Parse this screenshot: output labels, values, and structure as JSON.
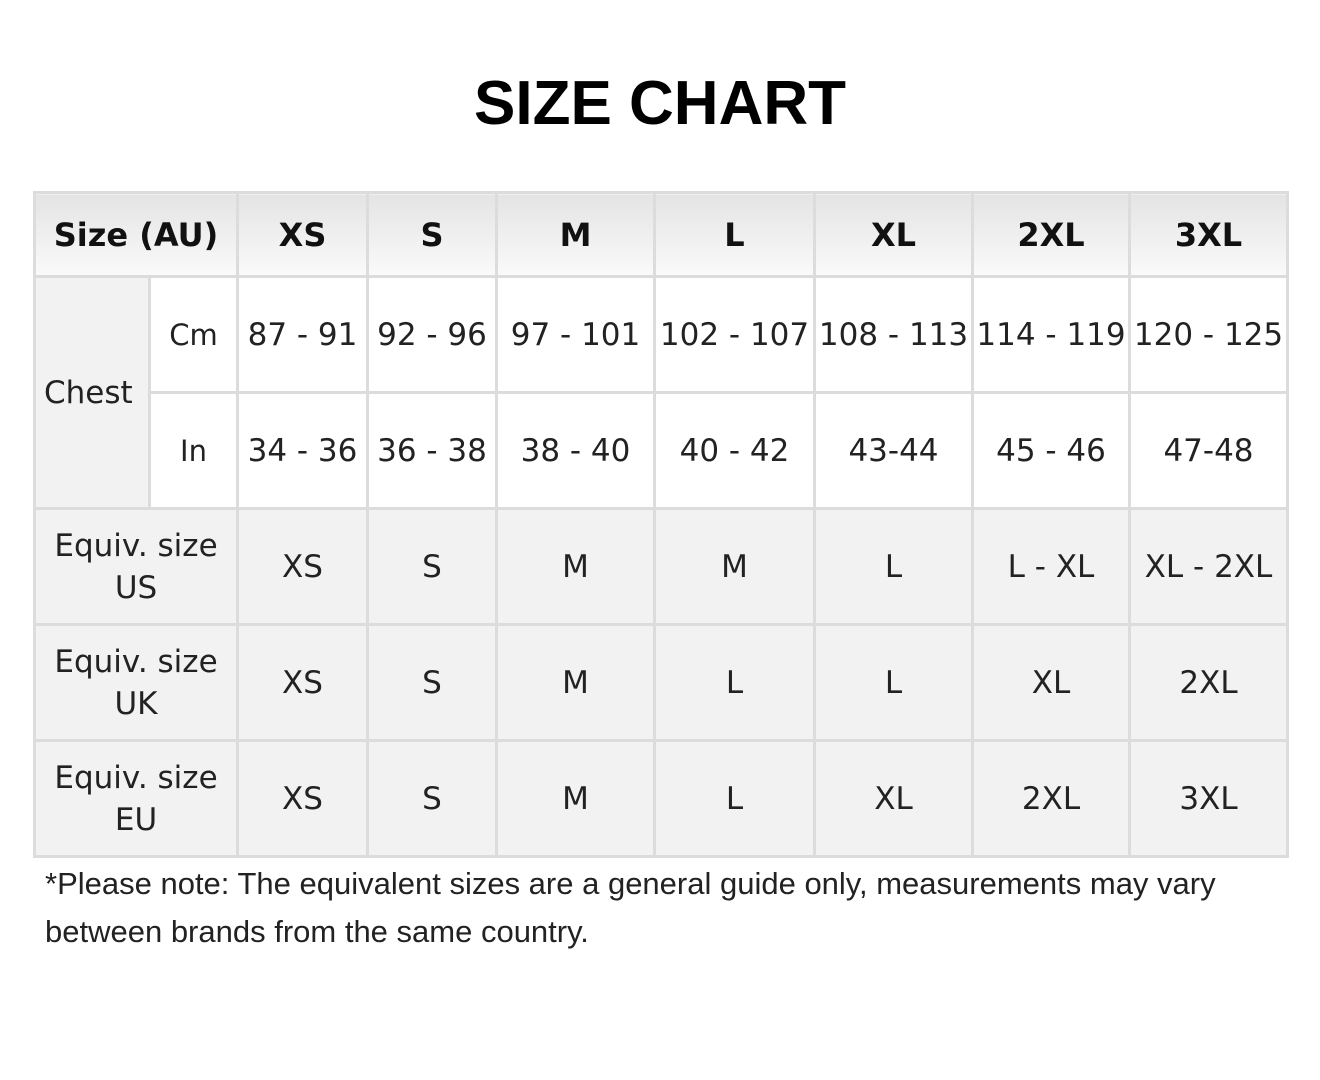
{
  "title": "SIZE CHART",
  "header": {
    "label": "Size (AU)",
    "sizes": [
      "XS",
      "S",
      "M",
      "L",
      "XL",
      "2XL",
      "3XL"
    ]
  },
  "chest": {
    "label": "Chest",
    "rows": [
      {
        "unit": "Cm",
        "values": [
          "87 - 91",
          "92 - 96",
          "97 - 101",
          "102 - 107",
          "108 - 113",
          "114 - 119",
          "120 - 125"
        ]
      },
      {
        "unit": "In",
        "values": [
          "34 - 36",
          "36 - 38",
          "38 - 40",
          "40 - 42",
          "43-44",
          "45 - 46",
          "47-48"
        ]
      }
    ]
  },
  "equiv": [
    {
      "label1": "Equiv. size",
      "label2": "US",
      "values": [
        "XS",
        "S",
        "M",
        "M",
        "L",
        "L - XL",
        "XL - 2XL"
      ]
    },
    {
      "label1": "Equiv. size",
      "label2": "UK",
      "values": [
        "XS",
        "S",
        "M",
        "L",
        "L",
        "XL",
        "2XL"
      ]
    },
    {
      "label1": "Equiv. size",
      "label2": "EU",
      "values": [
        "XS",
        "S",
        "M",
        "L",
        "XL",
        "2XL",
        "3XL"
      ]
    }
  ],
  "note": "*Please note: The equivalent sizes are a general guide only, measurements may vary between brands from the same country."
}
